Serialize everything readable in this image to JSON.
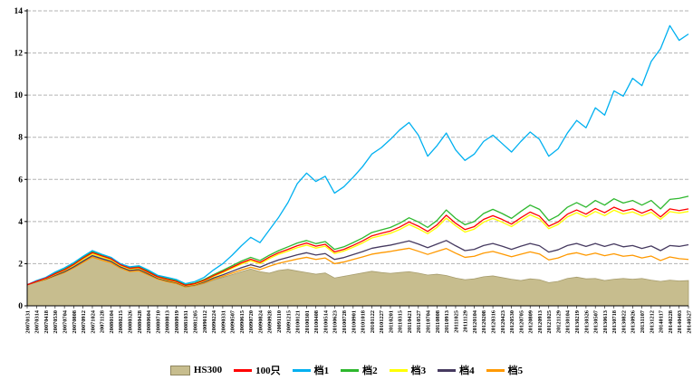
{
  "chart_data": {
    "type": "line",
    "title": "",
    "xlabel": "",
    "ylabel": "",
    "ylim": [
      0,
      14
    ],
    "yticks": [
      0,
      2,
      4,
      6,
      8,
      10,
      12,
      14
    ],
    "grid": "horizontal-dashed",
    "legend_position": "bottom",
    "x_labels": [
      "20070131",
      "20070314",
      "20070418",
      "20070530",
      "20070704",
      "20070808",
      "20070912",
      "20071024",
      "20071128",
      "20080104",
      "20080215",
      "20080326",
      "20080428",
      "20080604",
      "20080710",
      "20080813",
      "20080919",
      "20081031",
      "20081205",
      "20090112",
      "20090224",
      "20090331",
      "20090507",
      "20090615",
      "20090720",
      "20090824",
      "20090928",
      "20091110",
      "20091215",
      "20100121",
      "20100301",
      "20100408",
      "20100514",
      "20100623",
      "20100728",
      "20100901",
      "20101018",
      "20101122",
      "20101227",
      "20110201",
      "20110315",
      "20110421",
      "20110527",
      "20110704",
      "20110808",
      "20110913",
      "20111025",
      "20111129",
      "20120104",
      "20120208",
      "20120316",
      "20120423",
      "20120530",
      "20120705",
      "20120809",
      "20120913",
      "20121025",
      "20121129",
      "20130104",
      "20130219",
      "20130326",
      "20130507",
      "20130613",
      "20130718",
      "20130822",
      "20130926",
      "20131107",
      "20131212",
      "20140117",
      "20140228",
      "20140403",
      "20140527"
    ],
    "area_series": {
      "name": "HS300",
      "color": "#c7bd8e",
      "stroke": "#a79d6e",
      "values": [
        1.0,
        1.12,
        1.26,
        1.43,
        1.62,
        1.88,
        2.2,
        2.55,
        2.4,
        2.25,
        1.95,
        1.75,
        1.78,
        1.55,
        1.32,
        1.18,
        1.06,
        0.88,
        0.95,
        1.06,
        1.22,
        1.35,
        1.48,
        1.62,
        1.75,
        1.62,
        1.55,
        1.68,
        1.73,
        1.65,
        1.58,
        1.5,
        1.56,
        1.32,
        1.4,
        1.48,
        1.56,
        1.64,
        1.58,
        1.54,
        1.58,
        1.62,
        1.55,
        1.46,
        1.5,
        1.44,
        1.32,
        1.24,
        1.28,
        1.38,
        1.42,
        1.34,
        1.26,
        1.2,
        1.28,
        1.24,
        1.1,
        1.16,
        1.3,
        1.36,
        1.28,
        1.3,
        1.2,
        1.26,
        1.3,
        1.26,
        1.3,
        1.22,
        1.16,
        1.22,
        1.18,
        1.2
      ]
    },
    "series": [
      {
        "name": "100只",
        "color": "#ff0000",
        "values": [
          1.0,
          1.16,
          1.31,
          1.52,
          1.71,
          1.96,
          2.26,
          2.52,
          2.37,
          2.23,
          1.95,
          1.78,
          1.82,
          1.6,
          1.38,
          1.26,
          1.16,
          0.97,
          1.05,
          1.21,
          1.43,
          1.62,
          1.83,
          2.04,
          2.21,
          2.06,
          2.31,
          2.52,
          2.68,
          2.85,
          2.98,
          2.83,
          2.92,
          2.56,
          2.68,
          2.87,
          3.08,
          3.32,
          3.44,
          3.55,
          3.74,
          3.98,
          3.78,
          3.53,
          3.84,
          4.3,
          3.92,
          3.62,
          3.76,
          4.1,
          4.28,
          4.1,
          3.88,
          4.18,
          4.45,
          4.26,
          3.78,
          3.98,
          4.35,
          4.55,
          4.35,
          4.62,
          4.42,
          4.68,
          4.5,
          4.6,
          4.4,
          4.58,
          4.22,
          4.6,
          4.52,
          4.6
        ]
      },
      {
        "name": "档1",
        "color": "#00b0f0",
        "values": [
          1.0,
          1.2,
          1.35,
          1.6,
          1.8,
          2.05,
          2.35,
          2.62,
          2.45,
          2.3,
          2.0,
          1.85,
          1.9,
          1.7,
          1.45,
          1.35,
          1.25,
          1.05,
          1.15,
          1.35,
          1.7,
          2.0,
          2.4,
          2.85,
          3.25,
          3.0,
          3.6,
          4.2,
          4.9,
          5.8,
          6.3,
          5.9,
          6.15,
          5.35,
          5.65,
          6.1,
          6.6,
          7.2,
          7.5,
          7.9,
          8.35,
          8.7,
          8.1,
          7.1,
          7.6,
          8.2,
          7.4,
          6.9,
          7.2,
          7.8,
          8.1,
          7.7,
          7.3,
          7.8,
          8.25,
          7.9,
          7.1,
          7.45,
          8.2,
          8.8,
          8.45,
          9.4,
          9.05,
          10.2,
          9.95,
          10.8,
          10.45,
          11.6,
          12.2,
          13.3,
          12.6,
          12.9
        ]
      },
      {
        "name": "档2",
        "color": "#2eb82e",
        "values": [
          1.0,
          1.17,
          1.33,
          1.55,
          1.74,
          2.0,
          2.3,
          2.58,
          2.42,
          2.28,
          2.0,
          1.82,
          1.86,
          1.65,
          1.42,
          1.3,
          1.2,
          1.0,
          1.08,
          1.25,
          1.48,
          1.68,
          1.9,
          2.12,
          2.3,
          2.15,
          2.4,
          2.62,
          2.8,
          2.98,
          3.1,
          2.95,
          3.05,
          2.68,
          2.8,
          3.0,
          3.22,
          3.48,
          3.6,
          3.72,
          3.92,
          4.18,
          3.98,
          3.72,
          4.05,
          4.55,
          4.15,
          3.85,
          4.0,
          4.38,
          4.58,
          4.38,
          4.15,
          4.48,
          4.78,
          4.58,
          4.05,
          4.28,
          4.68,
          4.9,
          4.68,
          5.0,
          4.78,
          5.08,
          4.88,
          5.0,
          4.78,
          5.0,
          4.6,
          5.05,
          5.1,
          5.2
        ]
      },
      {
        "name": "档3",
        "color": "#ffff00",
        "values": [
          1.0,
          1.15,
          1.29,
          1.49,
          1.68,
          1.92,
          2.21,
          2.47,
          2.32,
          2.18,
          1.91,
          1.74,
          1.78,
          1.57,
          1.35,
          1.23,
          1.13,
          0.95,
          1.02,
          1.18,
          1.39,
          1.57,
          1.78,
          1.98,
          2.14,
          2.0,
          2.24,
          2.45,
          2.6,
          2.76,
          2.88,
          2.74,
          2.83,
          2.48,
          2.6,
          2.78,
          2.98,
          3.22,
          3.33,
          3.44,
          3.62,
          3.86,
          3.66,
          3.42,
          3.72,
          4.16,
          3.8,
          3.5,
          3.64,
          3.97,
          4.15,
          3.97,
          3.76,
          4.05,
          4.32,
          4.13,
          3.66,
          3.86,
          4.22,
          4.42,
          4.22,
          4.48,
          4.28,
          4.54,
          4.36,
          4.46,
          4.27,
          4.44,
          4.1,
          4.47,
          4.4,
          4.48
        ]
      },
      {
        "name": "档4",
        "color": "#463a60",
        "values": [
          1.0,
          1.14,
          1.27,
          1.45,
          1.62,
          1.85,
          2.12,
          2.38,
          2.24,
          2.11,
          1.85,
          1.68,
          1.72,
          1.52,
          1.31,
          1.19,
          1.1,
          0.93,
          1.0,
          1.13,
          1.32,
          1.47,
          1.64,
          1.81,
          1.95,
          1.83,
          2.02,
          2.18,
          2.3,
          2.42,
          2.52,
          2.41,
          2.48,
          2.2,
          2.29,
          2.43,
          2.57,
          2.73,
          2.81,
          2.88,
          2.98,
          3.08,
          2.93,
          2.76,
          2.93,
          3.1,
          2.85,
          2.62,
          2.68,
          2.86,
          2.96,
          2.83,
          2.68,
          2.83,
          2.96,
          2.85,
          2.55,
          2.66,
          2.86,
          2.96,
          2.82,
          2.96,
          2.82,
          2.94,
          2.8,
          2.86,
          2.72,
          2.84,
          2.62,
          2.86,
          2.82,
          2.9
        ]
      },
      {
        "name": "档5",
        "color": "#ff9900",
        "values": [
          1.0,
          1.13,
          1.25,
          1.42,
          1.58,
          1.8,
          2.06,
          2.31,
          2.17,
          2.04,
          1.79,
          1.63,
          1.66,
          1.47,
          1.27,
          1.15,
          1.06,
          0.9,
          0.97,
          1.09,
          1.26,
          1.4,
          1.55,
          1.7,
          1.83,
          1.72,
          1.88,
          2.02,
          2.12,
          2.22,
          2.3,
          2.2,
          2.27,
          2.0,
          2.08,
          2.2,
          2.32,
          2.45,
          2.52,
          2.58,
          2.66,
          2.73,
          2.59,
          2.44,
          2.58,
          2.72,
          2.5,
          2.3,
          2.35,
          2.5,
          2.58,
          2.46,
          2.33,
          2.45,
          2.56,
          2.46,
          2.18,
          2.27,
          2.44,
          2.52,
          2.4,
          2.5,
          2.38,
          2.47,
          2.35,
          2.4,
          2.27,
          2.36,
          2.15,
          2.32,
          2.24,
          2.2
        ]
      }
    ],
    "legend_items": [
      "HS300",
      "100只",
      "档1",
      "档2",
      "档3",
      "档4",
      "档5"
    ]
  }
}
